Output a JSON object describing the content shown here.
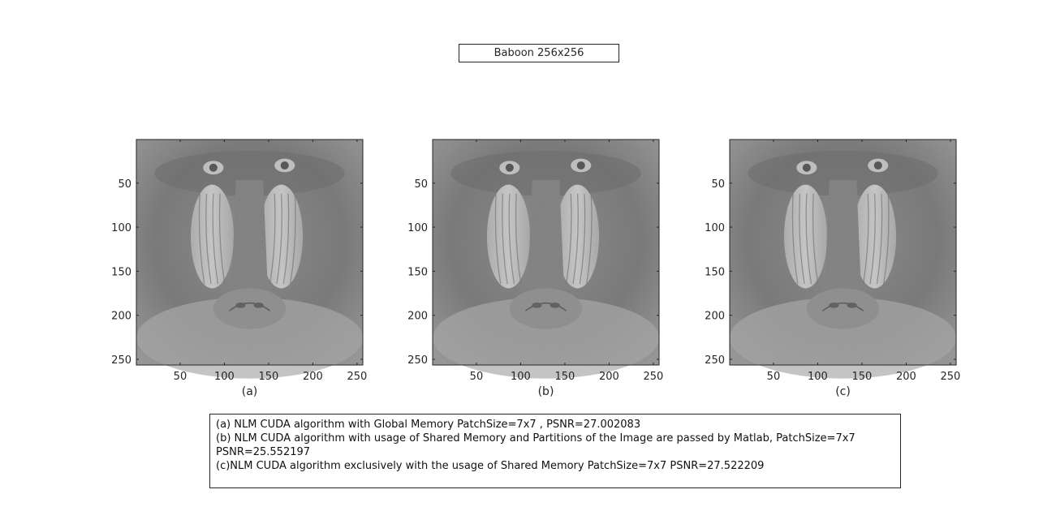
{
  "figure": {
    "title": "Baboon 256x256"
  },
  "chart_data": [
    {
      "type": "heatmap",
      "subplot_label": "(a)",
      "colormap": "gray",
      "image_size": [
        256,
        256
      ],
      "xlim": [
        1,
        256
      ],
      "ylim": [
        1,
        256
      ],
      "y_reversed": true,
      "xticks": [
        50,
        100,
        150,
        200,
        250
      ],
      "yticks": [
        50,
        100,
        150,
        200,
        250
      ],
      "xtick_labels": [
        "50",
        "100",
        "150",
        "200",
        "250"
      ],
      "ytick_labels": [
        "50",
        "100",
        "150",
        "200",
        "250"
      ]
    },
    {
      "type": "heatmap",
      "subplot_label": "(b)",
      "colormap": "gray",
      "image_size": [
        256,
        256
      ],
      "xlim": [
        1,
        256
      ],
      "ylim": [
        1,
        256
      ],
      "y_reversed": true,
      "xticks": [
        50,
        100,
        150,
        200,
        250
      ],
      "yticks": [
        50,
        100,
        150,
        200,
        250
      ],
      "xtick_labels": [
        "50",
        "100",
        "150",
        "200",
        "250"
      ],
      "ytick_labels": [
        "50",
        "100",
        "150",
        "200",
        "250"
      ]
    },
    {
      "type": "heatmap",
      "subplot_label": "(c)",
      "colormap": "gray",
      "image_size": [
        256,
        256
      ],
      "xlim": [
        1,
        256
      ],
      "ylim": [
        1,
        256
      ],
      "y_reversed": true,
      "xticks": [
        50,
        100,
        150,
        200,
        250
      ],
      "yticks": [
        50,
        100,
        150,
        200,
        250
      ],
      "xtick_labels": [
        "50",
        "100",
        "150",
        "200",
        "250"
      ],
      "ytick_labels": [
        "50",
        "100",
        "150",
        "200",
        "250"
      ]
    }
  ],
  "caption": {
    "lines": [
      "(a) NLM CUDA algorithm with Global Memory PatchSize=7x7 , PSNR=27.002083",
      "(b) NLM CUDA algorithm with usage of Shared Memory and Partitions of the Image are passed by Matlab, PatchSize=7x7",
      "PSNR=25.552197",
      "(c)NLM CUDA algorithm exclusively with the usage of Shared Memory PatchSize=7x7 PSNR=27.522209"
    ]
  }
}
